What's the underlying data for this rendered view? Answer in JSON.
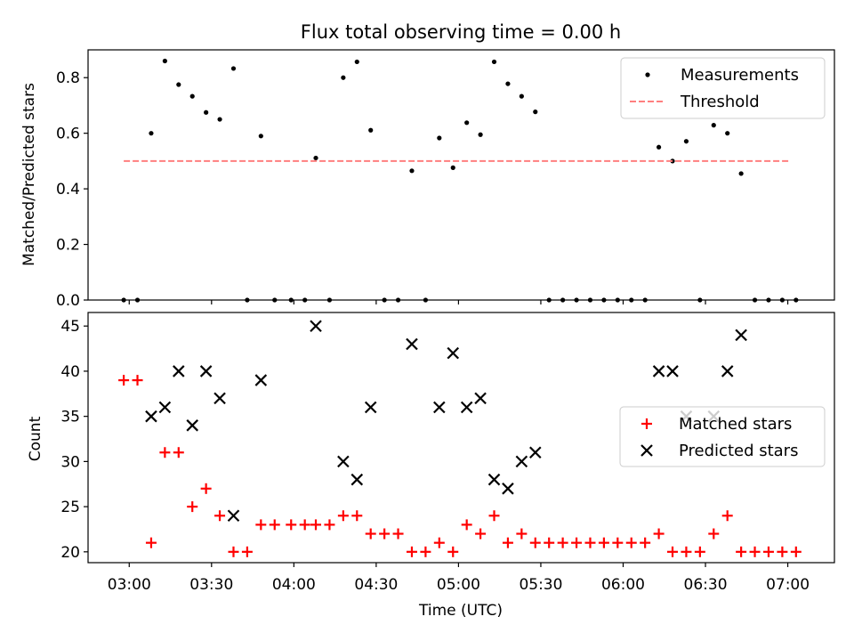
{
  "chart_data": [
    {
      "type": "scatter",
      "title": "Flux total observing time = 0.00 h",
      "xlabel": "",
      "ylabel": "Matched/Predicted stars",
      "xlim": [
        -0.75,
        12.85
      ],
      "ylim": [
        0.0,
        0.9
      ],
      "yticks": [
        0.0,
        0.2,
        0.4,
        0.6,
        0.8
      ],
      "ytick_labels": [
        "0.0",
        "0.2",
        "0.4",
        "0.6",
        "0.8"
      ],
      "xticks": [
        0,
        1.5,
        3,
        4.5,
        6,
        7.5,
        9,
        10.5,
        12
      ],
      "legend": {
        "position": "top-right",
        "entries": [
          {
            "label": "Measurements",
            "marker": "dot",
            "color": "#000000"
          },
          {
            "label": "Threshold",
            "marker": "dashed-line",
            "color": "#ff7f7f"
          }
        ]
      },
      "series": [
        {
          "name": "Measurements",
          "x": [
            -0.1,
            0.15,
            0.4,
            0.65,
            0.9,
            1.15,
            1.4,
            1.65,
            1.9,
            2.15,
            2.4,
            2.65,
            2.95,
            3.2,
            3.4,
            3.65,
            3.9,
            4.15,
            4.4,
            4.65,
            4.9,
            5.15,
            5.4,
            5.65,
            5.9,
            6.15,
            6.4,
            6.65,
            6.9,
            7.15,
            7.4,
            7.65,
            7.9,
            8.15,
            8.4,
            8.65,
            8.9,
            9.15,
            9.4,
            9.65,
            9.9,
            10.15,
            10.4,
            10.65,
            10.9,
            11.15,
            11.4,
            11.65,
            11.9,
            12.15
          ],
          "y": [
            0.0,
            0.0,
            0.6,
            0.86,
            0.775,
            0.733,
            0.675,
            0.65,
            0.833,
            0.0,
            0.59,
            0.0,
            0.0,
            0.0,
            0.511,
            0.0,
            0.8,
            0.857,
            0.611,
            0.0,
            0.0,
            0.465,
            0.0,
            0.583,
            0.476,
            0.638,
            0.595,
            0.857,
            0.778,
            0.733,
            0.677,
            0.0,
            0.0,
            0.0,
            0.0,
            0.0,
            0.0,
            0.0,
            0.0,
            0.55,
            0.5,
            0.571,
            0.0,
            0.629,
            0.6,
            0.455,
            0.0,
            0.0,
            0.0,
            0.0
          ]
        },
        {
          "name": "Threshold",
          "x": [
            -0.1,
            12.05
          ],
          "y": [
            0.5,
            0.5
          ]
        }
      ]
    },
    {
      "type": "scatter",
      "title": "",
      "xlabel": "Time (UTC)",
      "ylabel": "Count",
      "xlim": [
        -0.75,
        12.85
      ],
      "ylim": [
        18.8,
        46.5
      ],
      "yticks": [
        20,
        25,
        30,
        35,
        40,
        45
      ],
      "ytick_labels": [
        "20",
        "25",
        "30",
        "35",
        "40",
        "45"
      ],
      "xticks": [
        0,
        1.5,
        3,
        4.5,
        6,
        7.5,
        9,
        10.5,
        12
      ],
      "xtick_labels": [
        "03:00",
        "03:30",
        "04:00",
        "04:30",
        "05:00",
        "05:30",
        "06:00",
        "06:30",
        "07:00"
      ],
      "legend": {
        "position": "center-right",
        "entries": [
          {
            "label": "Matched stars",
            "marker": "plus",
            "color": "#ff0000"
          },
          {
            "label": "Predicted stars",
            "marker": "x",
            "color": "#000000"
          }
        ]
      },
      "series": [
        {
          "name": "Matched stars",
          "x": [
            -0.1,
            0.15,
            0.4,
            0.65,
            0.9,
            1.15,
            1.4,
            1.65,
            1.9,
            2.15,
            2.4,
            2.65,
            2.95,
            3.2,
            3.4,
            3.65,
            3.9,
            4.15,
            4.4,
            4.65,
            4.9,
            5.15,
            5.4,
            5.65,
            5.9,
            6.15,
            6.4,
            6.65,
            6.9,
            7.15,
            7.4,
            7.65,
            7.9,
            8.15,
            8.4,
            8.65,
            8.9,
            9.15,
            9.4,
            9.65,
            9.9,
            10.15,
            10.4,
            10.65,
            10.9,
            11.15,
            11.4,
            11.65,
            11.9,
            12.15
          ],
          "y": [
            39,
            39,
            21,
            31,
            31,
            25,
            27,
            24,
            20,
            20,
            23,
            23,
            23,
            23,
            23,
            23,
            24,
            24,
            22,
            22,
            22,
            20,
            20,
            21,
            20,
            23,
            22,
            24,
            21,
            22,
            21,
            21,
            21,
            21,
            21,
            21,
            21,
            21,
            21,
            22,
            20,
            20,
            20,
            22,
            24,
            20,
            20,
            20,
            20,
            20
          ]
        },
        {
          "name": "Predicted stars",
          "x": [
            0.4,
            0.65,
            0.9,
            1.15,
            1.4,
            1.65,
            1.9,
            2.4,
            3.4,
            3.9,
            4.15,
            4.4,
            5.15,
            5.65,
            5.9,
            6.15,
            6.4,
            6.65,
            6.9,
            7.15,
            7.4,
            9.65,
            9.9,
            10.15,
            10.65,
            10.9,
            11.15
          ],
          "y": [
            35,
            36,
            40,
            34,
            40,
            37,
            24,
            39,
            45,
            30,
            28,
            36,
            43,
            36,
            42,
            36,
            37,
            28,
            27,
            30,
            31,
            40,
            40,
            35,
            35,
            40,
            44
          ]
        }
      ]
    }
  ]
}
